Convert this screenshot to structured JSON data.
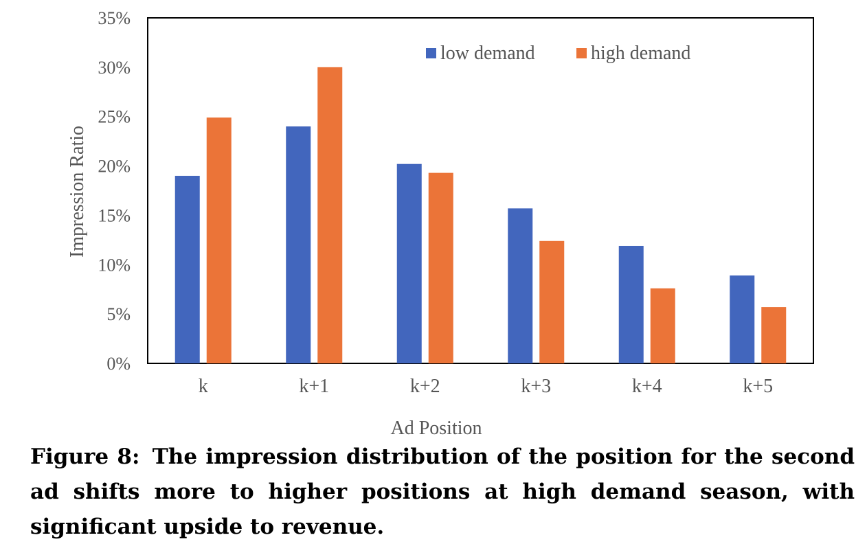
{
  "chart_data": {
    "type": "bar",
    "title": "",
    "xlabel": "Ad Position",
    "ylabel": "Impression Ratio",
    "categories": [
      "k",
      "k+1",
      "k+2",
      "k+3",
      "k+4",
      "k+5"
    ],
    "series": [
      {
        "name": "low demand",
        "color": "#4266BD",
        "values": [
          19.0,
          24.0,
          20.2,
          15.7,
          11.9,
          8.9
        ]
      },
      {
        "name": "high demand",
        "color": "#EB7438",
        "values": [
          24.9,
          30.0,
          19.3,
          12.4,
          7.6,
          5.7
        ]
      }
    ],
    "ylim": [
      0,
      35
    ],
    "yticks": [
      0,
      5,
      10,
      15,
      20,
      25,
      30,
      35
    ],
    "ytick_labels": [
      "0%",
      "5%",
      "10%",
      "15%",
      "20%",
      "25%",
      "30%",
      "35%"
    ],
    "grid": false,
    "legend": "top-right"
  },
  "caption": {
    "label": "Figure 8:",
    "text": "The impression distribution of the position for the second ad shifts more to higher positions at high demand season, with significant upside to revenue."
  }
}
